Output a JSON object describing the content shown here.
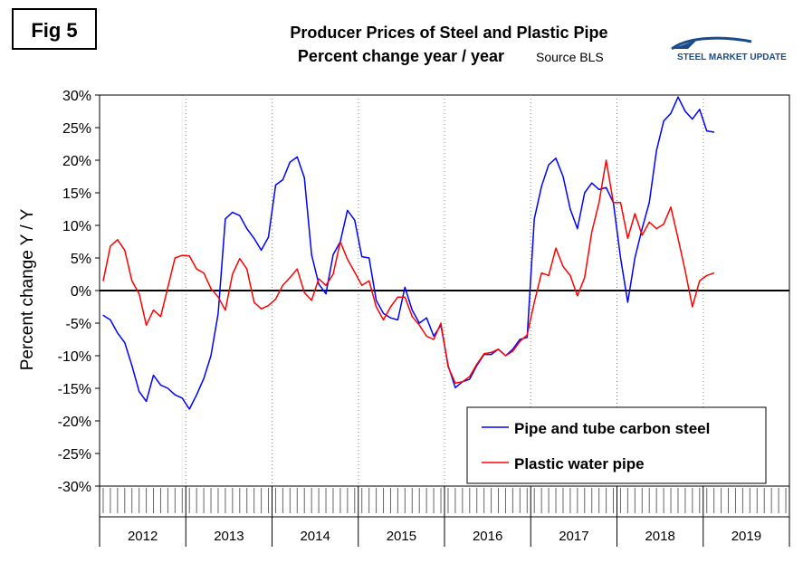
{
  "fig_label": "Fig 5",
  "title_line1": "Producer Prices of Steel and Plastic Pipe",
  "title_line2": "Percent change year / year",
  "source": "Source BLS",
  "logo_text": "STEEL MARKET UPDATE",
  "colors": {
    "steel": "#0000ff",
    "plastic": "#ff0000",
    "zero_line": "#000000",
    "grid": "#888888"
  },
  "chart_data": {
    "type": "line",
    "title": "Producer Prices of Steel and Plastic Pipe",
    "subtitle": "Percent change year / year",
    "xlabel": "",
    "ylabel": "Percent change Y / Y",
    "ylim": [
      -30,
      30
    ],
    "yticks": [
      30,
      25,
      20,
      15,
      10,
      5,
      0,
      -5,
      -10,
      -15,
      -20,
      -25,
      -30
    ],
    "ytick_labels": [
      "30%",
      "25%",
      "20%",
      "15%",
      "10%",
      "5%",
      "0%",
      "-5%",
      "-10%",
      "-15%",
      "-20%",
      "-25%",
      "-30%"
    ],
    "years": [
      "2012",
      "2013",
      "2014",
      "2015",
      "2016",
      "2017",
      "2018",
      "2019"
    ],
    "months_per_year": 12,
    "x_unit": "month index from Jan 2012",
    "grid": "vertical dotted at year boundaries",
    "legend_position": "bottom-right",
    "series": [
      {
        "name": "Pipe and tube carbon steel",
        "color": "#0000ff",
        "values": [
          -3.8,
          -4.5,
          -6.5,
          -8,
          -11.5,
          -15.5,
          -17,
          -13,
          -14.5,
          -15,
          -16,
          -16.5,
          -18.2,
          -16,
          -13.5,
          -10,
          -3.5,
          11,
          12,
          11.5,
          9.5,
          8,
          6.2,
          8.2,
          16.2,
          17,
          19.7,
          20.5,
          17.3,
          5.5,
          1,
          -0.5,
          5.5,
          7.5,
          12.3,
          10.8,
          5.2,
          5,
          -1.5,
          -3.5,
          -4.2,
          -4.5,
          0.5,
          -3,
          -5,
          -4.2,
          -7,
          -5.3,
          -11.5,
          -14.9,
          -14,
          -13.6,
          -11.5,
          -9.8,
          -9.8,
          -9,
          -10,
          -9,
          -7.5,
          -7.2,
          11,
          16,
          19.3,
          20.3,
          17.5,
          12.5,
          9.5,
          15,
          16.5,
          15.5,
          15.8,
          13.5,
          5,
          -1.8,
          5,
          9.5,
          13.5,
          21.5,
          26,
          27.2,
          29.7,
          27.5,
          26.3,
          27.8,
          24.5,
          24.3
        ],
        "note": "months Jan 2012 through Feb 2019"
      },
      {
        "name": "Plastic water pipe",
        "color": "#ff0000",
        "values": [
          1.5,
          6.8,
          7.8,
          6.2,
          1.5,
          -0.5,
          -5.3,
          -3,
          -4,
          0.5,
          5,
          5.4,
          5.3,
          3.3,
          2.7,
          0.3,
          -1,
          -3,
          2.5,
          4.9,
          3.3,
          -1.8,
          -2.8,
          -2.3,
          -1.3,
          0.8,
          2,
          3.3,
          -0.3,
          -1.5,
          1.8,
          0.8,
          2.5,
          7.5,
          4.8,
          2.8,
          0.8,
          1.5,
          -2.5,
          -4.5,
          -2.5,
          -1,
          -1,
          -4,
          -5.3,
          -7,
          -7.5,
          -5,
          -11.7,
          -14.2,
          -14,
          -13.2,
          -11.3,
          -9.7,
          -9.5,
          -9,
          -10,
          -9.3,
          -7.8,
          -6.8,
          -1.8,
          2.7,
          2.3,
          6.5,
          3.7,
          2.3,
          -0.8,
          2,
          9,
          13.5,
          20,
          13.5,
          13.5,
          8,
          11.8,
          8.5,
          10.5,
          9.5,
          10.2,
          12.8,
          8,
          3,
          -2.5,
          1.5,
          2.3,
          2.7
        ],
        "note": "months Jan 2012 through Feb 2019"
      }
    ]
  }
}
